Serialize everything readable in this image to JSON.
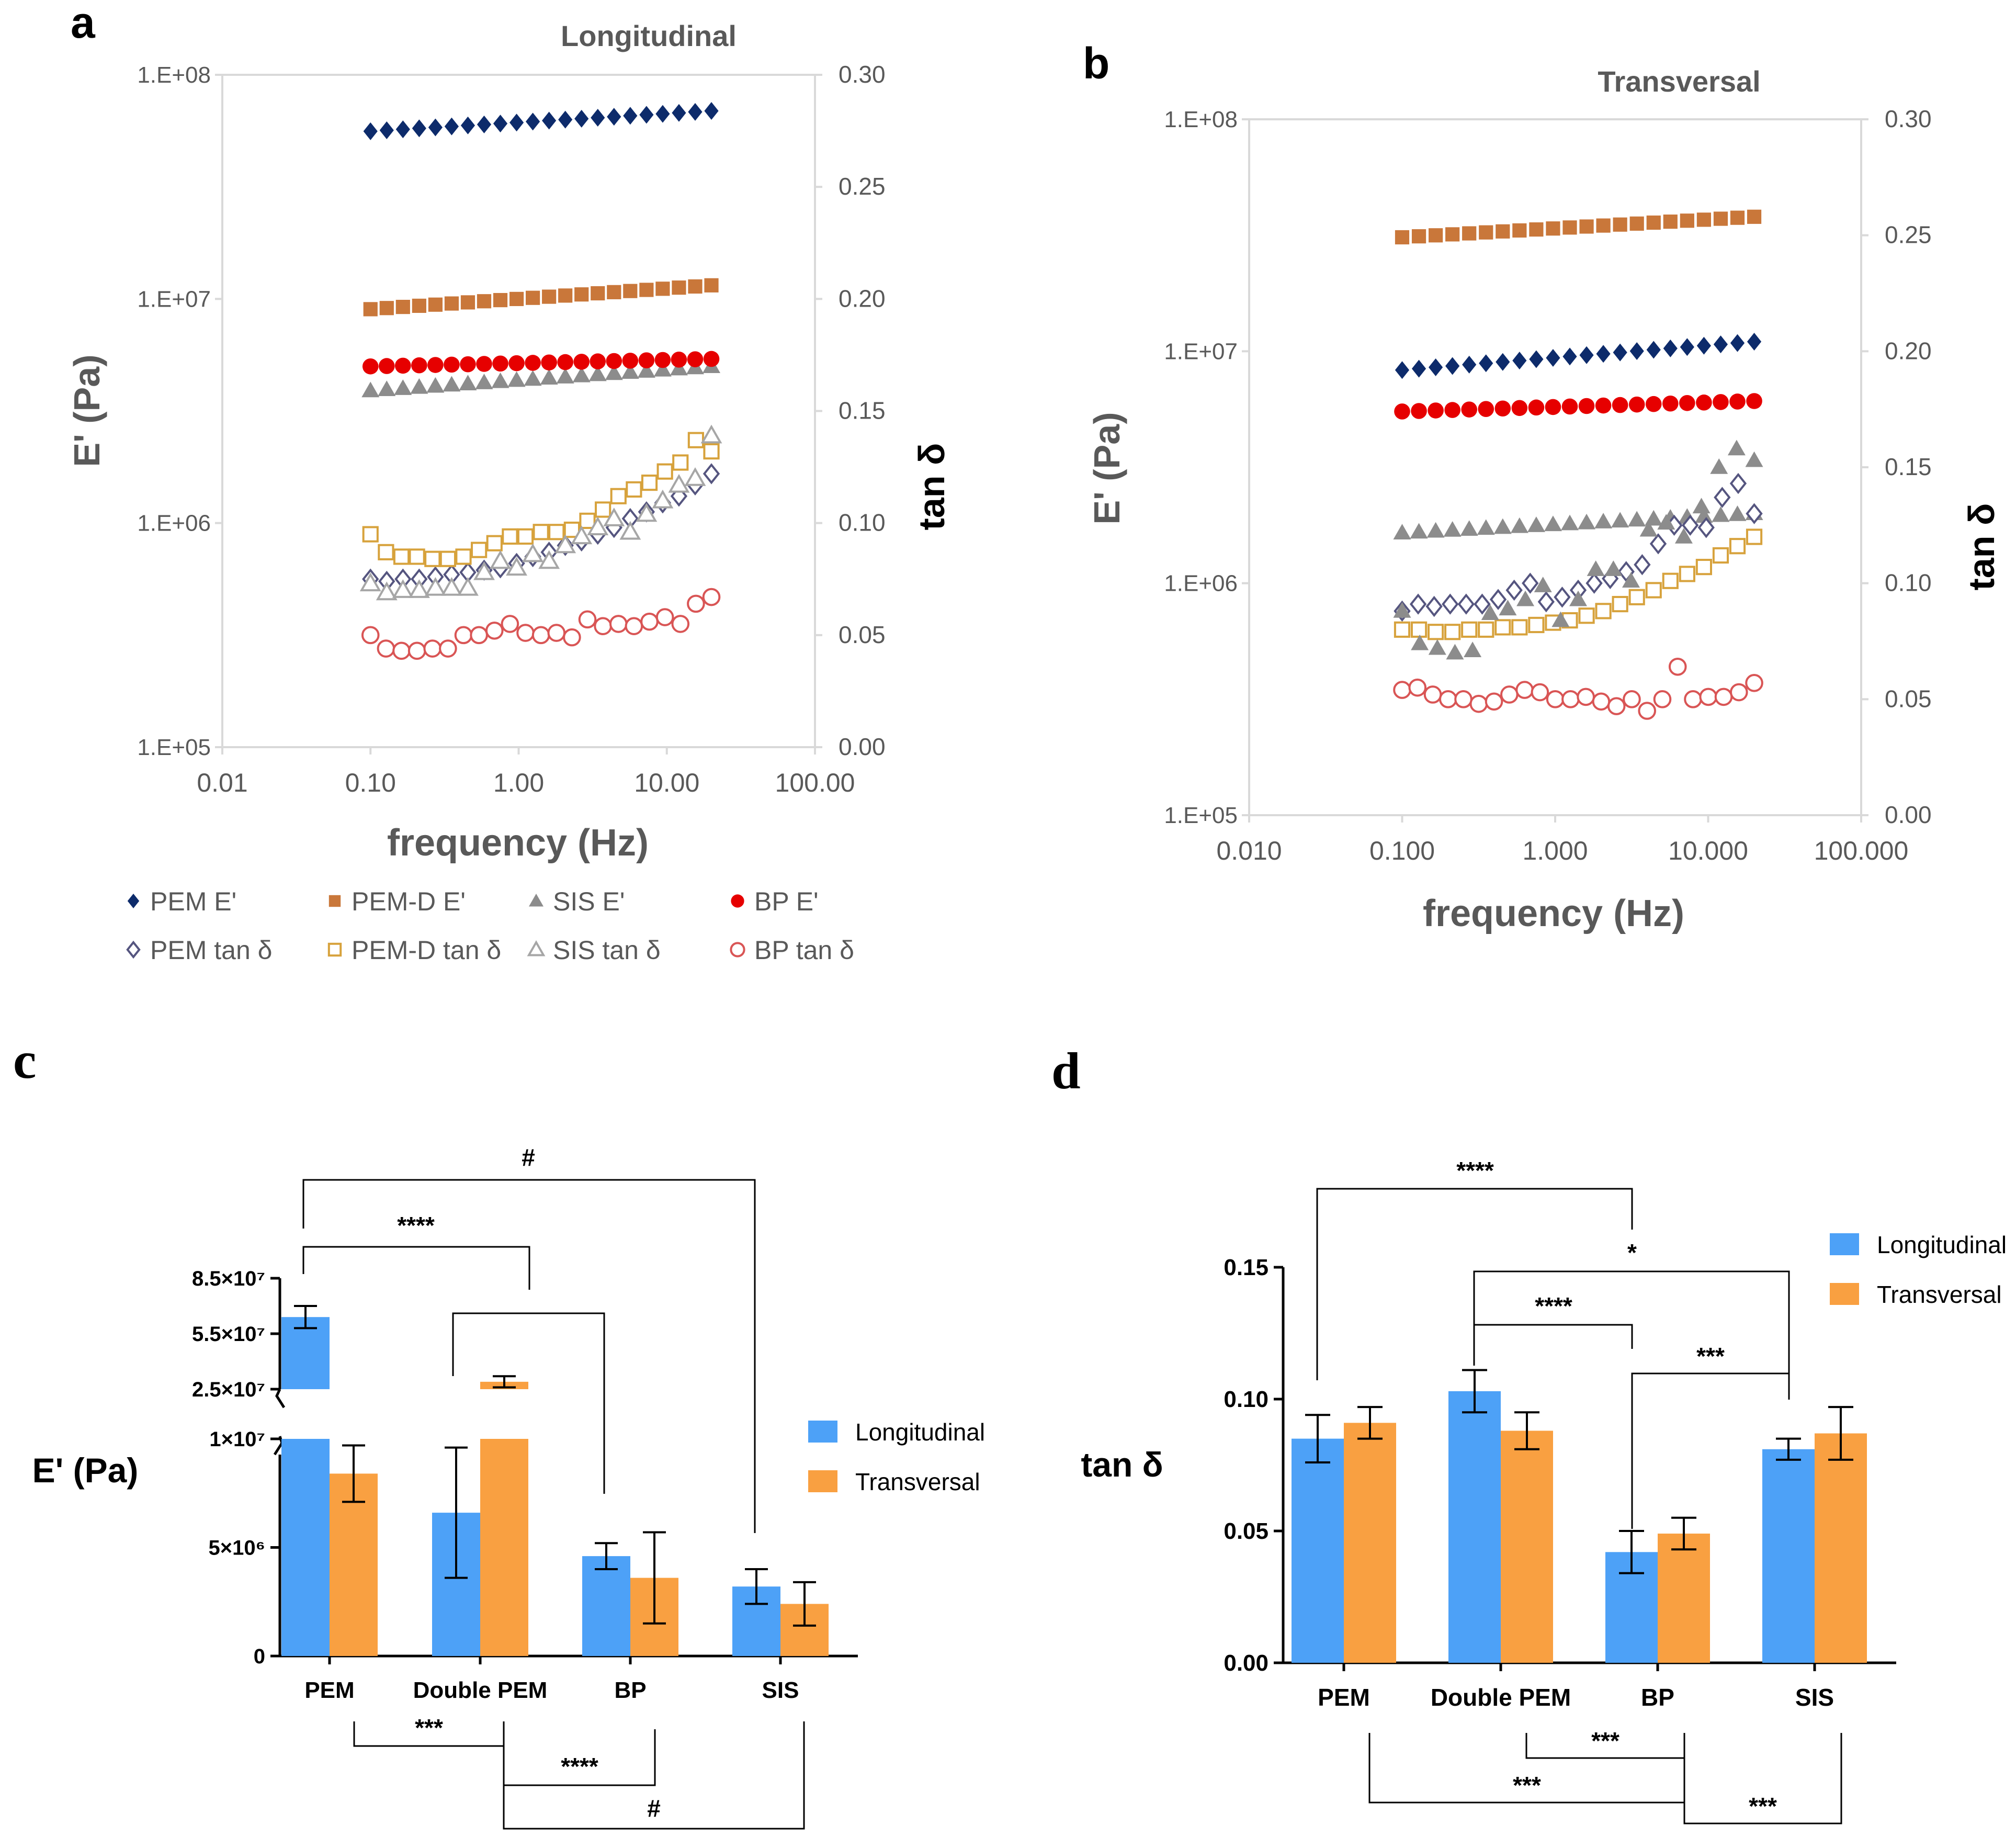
{
  "colors": {
    "pem": "#0d2b6b",
    "pem_d": "#c9773a",
    "sis": "#8c8c8c",
    "bp": "#e60000",
    "pem_open": "#55557f",
    "pem_d_open": "#d7a23c",
    "sis_open": "#a6a6a6",
    "bp_open": "#d95555",
    "longitudinal": "#4da1f7",
    "transversal": "#f9a041"
  },
  "chart_data": [
    {
      "id": "a",
      "panel_label": "a",
      "type": "scatter",
      "title": "Longitudinal",
      "xlabel": "frequency (Hz)",
      "ylabel": "E' (Pa)",
      "y2label": "tan δ",
      "xscale": "log",
      "xlim": [
        0.01,
        100
      ],
      "ylim": [
        100000,
        100000000
      ],
      "y2lim": [
        0,
        0.3
      ],
      "x_ticks": [
        "0.01",
        "0.10",
        "1.00",
        "10.00",
        "100.00"
      ],
      "y_ticks": [
        "1.E+05",
        "1.E+06",
        "1.E+07",
        "1.E+08"
      ],
      "y2_ticks": [
        "0.00",
        "0.05",
        "0.10",
        "0.15",
        "0.20",
        "0.25",
        "0.30"
      ],
      "series": [
        {
          "name": "PEM E'",
          "axis": "left",
          "marker": "diamond",
          "filled": true,
          "color_key": "pem",
          "x_range": [
            0.1,
            20
          ],
          "n": 22,
          "start": 56000000,
          "end": 69000000
        },
        {
          "name": "PEM-D E'",
          "axis": "left",
          "marker": "square",
          "filled": true,
          "color_key": "pem_d",
          "x_range": [
            0.1,
            20
          ],
          "n": 22,
          "start": 9000000,
          "end": 11500000
        },
        {
          "name": "SIS E'",
          "axis": "left",
          "marker": "triangle",
          "filled": true,
          "color_key": "sis",
          "x_range": [
            0.1,
            20
          ],
          "n": 22,
          "start": 3900000,
          "end": 5000000
        },
        {
          "name": "BP E'",
          "axis": "left",
          "marker": "circle",
          "filled": true,
          "color_key": "bp",
          "x_range": [
            0.1,
            20
          ],
          "n": 22,
          "start": 5000000,
          "end": 5400000
        },
        {
          "name": "PEM tan δ",
          "axis": "right",
          "marker": "diamond",
          "filled": false,
          "color_key": "pem_open",
          "x_range": [
            0.1,
            20
          ],
          "values": [
            0.075,
            0.074,
            0.075,
            0.075,
            0.076,
            0.077,
            0.078,
            0.079,
            0.08,
            0.082,
            0.085,
            0.087,
            0.09,
            0.092,
            0.095,
            0.098,
            0.102,
            0.105,
            0.109,
            0.112,
            0.117,
            0.122
          ]
        },
        {
          "name": "PEM-D tan δ",
          "axis": "right",
          "marker": "square",
          "filled": false,
          "color_key": "pem_d_open",
          "x_range": [
            0.1,
            20
          ],
          "values": [
            0.095,
            0.087,
            0.085,
            0.085,
            0.084,
            0.084,
            0.085,
            0.088,
            0.091,
            0.094,
            0.094,
            0.096,
            0.096,
            0.097,
            0.101,
            0.106,
            0.112,
            0.115,
            0.118,
            0.123,
            0.127,
            0.137,
            0.132
          ]
        },
        {
          "name": "SIS tan δ",
          "axis": "right",
          "marker": "triangle",
          "filled": false,
          "color_key": "sis_open",
          "x_range": [
            0.1,
            20
          ],
          "values": [
            0.073,
            0.069,
            0.07,
            0.07,
            0.071,
            0.071,
            0.071,
            0.078,
            0.083,
            0.08,
            0.086,
            0.083,
            0.09,
            0.094,
            0.098,
            0.102,
            0.096,
            0.104,
            0.11,
            0.117,
            0.12,
            0.139
          ]
        },
        {
          "name": "BP tan δ",
          "axis": "right",
          "marker": "circle",
          "filled": false,
          "color_key": "bp_open",
          "x_range": [
            0.1,
            20
          ],
          "values": [
            0.05,
            0.044,
            0.043,
            0.043,
            0.044,
            0.044,
            0.05,
            0.05,
            0.052,
            0.055,
            0.051,
            0.05,
            0.051,
            0.049,
            0.057,
            0.054,
            0.055,
            0.054,
            0.056,
            0.058,
            0.055,
            0.064,
            0.067
          ]
        }
      ],
      "legend": [
        [
          "PEM E'",
          "PEM-D E'",
          "SIS E'",
          "BP E'"
        ],
        [
          "PEM tan δ",
          "PEM-D tan δ",
          "SIS tan δ",
          "BP tan δ"
        ]
      ]
    },
    {
      "id": "b",
      "panel_label": "b",
      "type": "scatter",
      "title": "Transversal",
      "xlabel": "frequency (Hz)",
      "ylabel": "E' (Pa)",
      "y2label": "tan δ",
      "xscale": "log",
      "xlim": [
        0.01,
        100
      ],
      "ylim": [
        100000,
        100000000
      ],
      "y2lim": [
        0,
        0.3
      ],
      "x_ticks": [
        "0.010",
        "0.100",
        "1.000",
        "10.000",
        "100.000"
      ],
      "y_ticks": [
        "1.E+05",
        "1.E+06",
        "1.E+07",
        "1.E+08"
      ],
      "y2_ticks": [
        "0.00",
        "0.05",
        "0.10",
        "0.15",
        "0.20",
        "0.25",
        "0.30"
      ],
      "series": [
        {
          "name": "PEM-D E'",
          "axis": "left",
          "marker": "square",
          "filled": true,
          "color_key": "pem_d",
          "x_range": [
            0.1,
            20
          ],
          "n": 22,
          "start": 31000000,
          "end": 38000000
        },
        {
          "name": "PEM E'",
          "axis": "left",
          "marker": "diamond",
          "filled": true,
          "color_key": "pem",
          "x_range": [
            0.1,
            20
          ],
          "n": 22,
          "start": 8300000,
          "end": 11000000
        },
        {
          "name": "BP E'",
          "axis": "left",
          "marker": "circle",
          "filled": true,
          "color_key": "bp",
          "x_range": [
            0.1,
            20
          ],
          "n": 22,
          "start": 5500000,
          "end": 6100000
        },
        {
          "name": "SIS E'",
          "axis": "left",
          "marker": "triangle",
          "filled": true,
          "color_key": "sis",
          "x_range": [
            0.1,
            20
          ],
          "n": 22,
          "start": 1650000,
          "end": 2000000
        },
        {
          "name": "PEM tan δ",
          "axis": "right",
          "marker": "diamond",
          "filled": false,
          "color_key": "pem_open",
          "x_range": [
            0.1,
            20
          ],
          "values": [
            0.088,
            0.091,
            0.09,
            0.091,
            0.091,
            0.091,
            0.093,
            0.097,
            0.1,
            0.092,
            0.094,
            0.097,
            0.1,
            0.102,
            0.105,
            0.108,
            0.117,
            0.125,
            0.125,
            0.124,
            0.137,
            0.143,
            0.13
          ]
        },
        {
          "name": "PEM-D tan δ",
          "axis": "right",
          "marker": "square",
          "filled": false,
          "color_key": "pem_d_open",
          "x_range": [
            0.1,
            20
          ],
          "values": [
            0.08,
            0.08,
            0.079,
            0.079,
            0.08,
            0.08,
            0.081,
            0.081,
            0.082,
            0.083,
            0.084,
            0.086,
            0.088,
            0.091,
            0.094,
            0.097,
            0.101,
            0.104,
            0.107,
            0.112,
            0.116,
            0.12
          ]
        },
        {
          "name": "SIS tan δ",
          "axis": "right",
          "marker": "triangle",
          "filled": true,
          "color_key": "sis",
          "x_range": [
            0.1,
            20
          ],
          "values": [
            0.088,
            0.074,
            0.072,
            0.07,
            0.071,
            0.087,
            0.089,
            0.093,
            0.099,
            0.084,
            0.093,
            0.106,
            0.106,
            0.101,
            0.123,
            0.126,
            0.12,
            0.133,
            0.15,
            0.158,
            0.153
          ]
        },
        {
          "name": "BP tan δ",
          "axis": "right",
          "marker": "circle",
          "filled": false,
          "color_key": "bp_open",
          "x_range": [
            0.1,
            20
          ],
          "values": [
            0.054,
            0.055,
            0.052,
            0.05,
            0.05,
            0.048,
            0.049,
            0.052,
            0.054,
            0.053,
            0.05,
            0.05,
            0.051,
            0.049,
            0.047,
            0.05,
            0.045,
            0.05,
            0.064,
            0.05,
            0.051,
            0.051,
            0.053,
            0.057
          ]
        }
      ]
    },
    {
      "id": "c",
      "panel_label": "c",
      "type": "bar",
      "ylabel": "E' (Pa)",
      "categories": [
        "PEM",
        "Double PEM",
        "BP",
        "SIS"
      ],
      "broken_axis": true,
      "lower_ylim": [
        0,
        10000000
      ],
      "upper_ylim": [
        25000000,
        85000000
      ],
      "y_ticks_lower": [
        "0",
        "5×10⁶",
        "1×10⁷"
      ],
      "y_ticks_upper": [
        "2.5×10⁷",
        "5.5×10⁷",
        "8.5×10⁷"
      ],
      "y_tick_values_lower": [
        0,
        5000000,
        10000000
      ],
      "y_tick_values_upper": [
        25000000,
        55000000,
        85000000
      ],
      "series": [
        {
          "name": "Longitudinal",
          "color_key": "longitudinal",
          "values": [
            64000000,
            6600000,
            4600000,
            3200000
          ],
          "errors": [
            6000000,
            3000000,
            600000,
            800000
          ]
        },
        {
          "name": "Transversal",
          "color_key": "transversal",
          "values": [
            8400000,
            29000000,
            3600000,
            2400000
          ],
          "errors": [
            1300000,
            3000000,
            2100000,
            1000000
          ]
        }
      ],
      "annotations": [
        "#",
        "****",
        "***",
        "****",
        "#"
      ]
    },
    {
      "id": "d",
      "panel_label": "d",
      "type": "bar",
      "ylabel": "tan δ",
      "categories": [
        "PEM",
        "Double PEM",
        "BP",
        "SIS"
      ],
      "ylim": [
        0,
        0.15
      ],
      "y_ticks": [
        "0.00",
        "0.05",
        "0.10",
        "0.15"
      ],
      "y_tick_values": [
        0,
        0.05,
        0.1,
        0.15
      ],
      "series": [
        {
          "name": "Longitudinal",
          "color_key": "longitudinal",
          "values": [
            0.085,
            0.103,
            0.042,
            0.081
          ],
          "errors": [
            0.009,
            0.008,
            0.008,
            0.004
          ]
        },
        {
          "name": "Transversal",
          "color_key": "transversal",
          "values": [
            0.091,
            0.088,
            0.049,
            0.087
          ],
          "errors": [
            0.006,
            0.007,
            0.006,
            0.01
          ]
        }
      ],
      "annotations": [
        "****",
        "*",
        "****",
        "***",
        "***",
        "***",
        "***"
      ]
    }
  ]
}
